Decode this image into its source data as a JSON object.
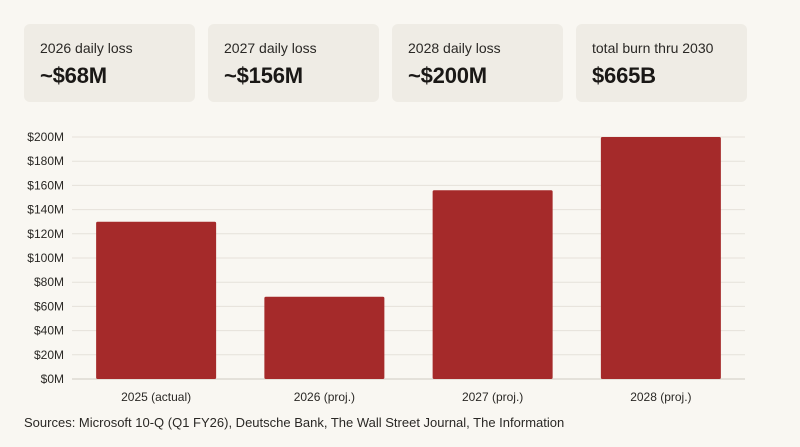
{
  "stats": [
    {
      "label": "2026 daily loss",
      "value": "~$68M"
    },
    {
      "label": "2027 daily loss",
      "value": "~$156M"
    },
    {
      "label": "2028 daily loss",
      "value": "~$200M"
    },
    {
      "label": "total burn thru 2030",
      "value": "$665B"
    }
  ],
  "chart_data": {
    "type": "bar",
    "categories": [
      "2025 (actual)",
      "2026 (proj.)",
      "2027 (proj.)",
      "2028 (proj.)"
    ],
    "values": [
      130,
      68,
      156,
      200
    ],
    "ylim": [
      0,
      200
    ],
    "yticks": [
      0,
      20,
      40,
      60,
      80,
      100,
      120,
      140,
      160,
      180,
      200
    ],
    "ytick_labels": [
      "$0M",
      "$20M",
      "$40M",
      "$60M",
      "$80M",
      "$100M",
      "$120M",
      "$140M",
      "$160M",
      "$180M",
      "$200M"
    ],
    "title": "",
    "xlabel": "",
    "ylabel": "",
    "bar_color": "#a52a2a",
    "grid": true
  },
  "sources": "Sources: Microsoft 10-Q (Q1 FY26), Deutsche Bank, The Wall Street Journal, The Information"
}
